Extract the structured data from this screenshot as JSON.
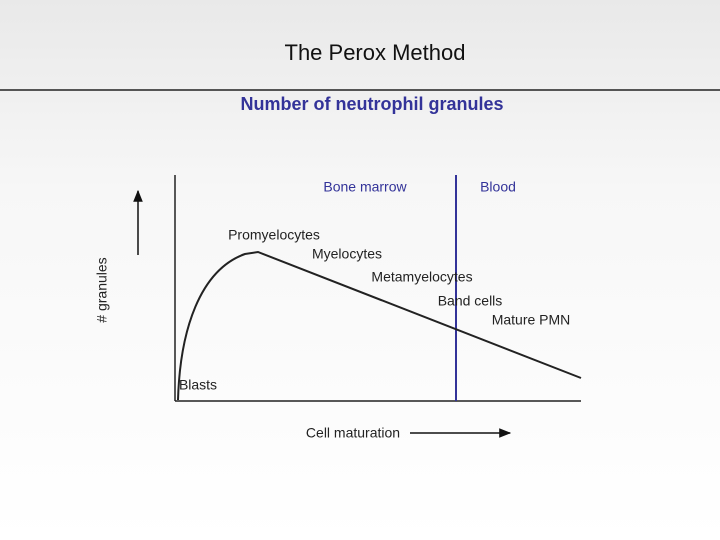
{
  "title": "The Perox Method",
  "subtitle": "Number of neutrophil granules",
  "diagram": {
    "y_axis_label": "# granules",
    "x_axis_label": "Cell maturation",
    "regions": [
      "Bone marrow",
      "Blood"
    ],
    "stages": [
      "Blasts",
      "Promyelocytes",
      "Myelocytes",
      "Metamyelocytes",
      "Band cells",
      "Mature PMN"
    ]
  }
}
